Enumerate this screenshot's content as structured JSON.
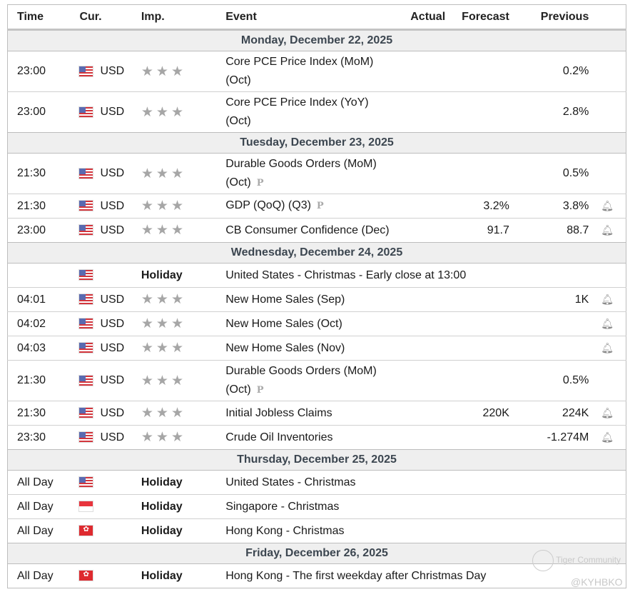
{
  "header": {
    "time": "Time",
    "cur": "Cur.",
    "imp": "Imp.",
    "event": "Event",
    "actual": "Actual",
    "forecast": "Forecast",
    "previous": "Previous"
  },
  "rows": [
    {
      "date": "Monday, December 22, 2025"
    },
    {
      "time": "23:00",
      "flag": "us",
      "cur": "USD",
      "event": "Core PCE Price Index (MoM)",
      "sub": "(Oct)",
      "actual": "",
      "forecast": "",
      "previous": "0.2%",
      "bell": false
    },
    {
      "time": "23:00",
      "flag": "us",
      "cur": "USD",
      "event": "Core PCE Price Index (YoY)",
      "sub": "(Oct)",
      "actual": "",
      "forecast": "",
      "previous": "2.8%",
      "bell": false
    },
    {
      "date": "Tuesday, December 23, 2025"
    },
    {
      "time": "21:30",
      "flag": "us",
      "cur": "USD",
      "event": "Durable Goods Orders (MoM)",
      "sub": "(Oct)",
      "prelim": true,
      "actual": "",
      "forecast": "",
      "previous": "0.5%",
      "bell": false
    },
    {
      "time": "21:30",
      "flag": "us",
      "cur": "USD",
      "event": "GDP (QoQ) (Q3)",
      "prelim": true,
      "actual": "",
      "forecast": "3.2%",
      "previous": "3.8%",
      "bell": true
    },
    {
      "time": "23:00",
      "flag": "us",
      "cur": "USD",
      "event": "CB Consumer Confidence (Dec)",
      "actual": "",
      "forecast": "91.7",
      "previous": "88.7",
      "bell": true
    },
    {
      "date": "Wednesday, December 24, 2025"
    },
    {
      "time": "",
      "flag": "us",
      "holiday": "Holiday",
      "event": "United States - Christmas - Early close at 13:00"
    },
    {
      "time": "04:01",
      "flag": "us",
      "cur": "USD",
      "event": "New Home Sales (Sep)",
      "actual": "",
      "forecast": "",
      "previous": "1K",
      "bell": true
    },
    {
      "time": "04:02",
      "flag": "us",
      "cur": "USD",
      "event": "New Home Sales (Oct)",
      "actual": "",
      "forecast": "",
      "previous": "",
      "bell": true
    },
    {
      "time": "04:03",
      "flag": "us",
      "cur": "USD",
      "event": "New Home Sales (Nov)",
      "actual": "",
      "forecast": "",
      "previous": "",
      "bell": true
    },
    {
      "time": "21:30",
      "flag": "us",
      "cur": "USD",
      "event": "Durable Goods Orders (MoM)",
      "sub": "(Oct)",
      "prelim": true,
      "actual": "",
      "forecast": "",
      "previous": "0.5%",
      "bell": false
    },
    {
      "time": "21:30",
      "flag": "us",
      "cur": "USD",
      "event": "Initial Jobless Claims",
      "actual": "",
      "forecast": "220K",
      "previous": "224K",
      "bell": true
    },
    {
      "time": "23:30",
      "flag": "us",
      "cur": "USD",
      "event": "Crude Oil Inventories",
      "actual": "",
      "forecast": "",
      "previous": "-1.274M",
      "bell": true
    },
    {
      "date": "Thursday, December 25, 2025"
    },
    {
      "time": "All Day",
      "flag": "us",
      "holiday": "Holiday",
      "event": "United States - Christmas"
    },
    {
      "time": "All Day",
      "flag": "sg",
      "holiday": "Holiday",
      "event": "Singapore - Christmas"
    },
    {
      "time": "All Day",
      "flag": "hk",
      "holiday": "Holiday",
      "event": "Hong Kong - Christmas"
    },
    {
      "date": "Friday, December 26, 2025"
    },
    {
      "time": "All Day",
      "flag": "hk",
      "holiday": "Holiday",
      "event": "Hong Kong - The first weekday after Christmas Day"
    }
  ],
  "icons": {
    "star": "★",
    "bell": "🔔",
    "prelim": "P"
  },
  "watermark": {
    "brand": "Tiger Community",
    "user": "@KYHBKO"
  }
}
